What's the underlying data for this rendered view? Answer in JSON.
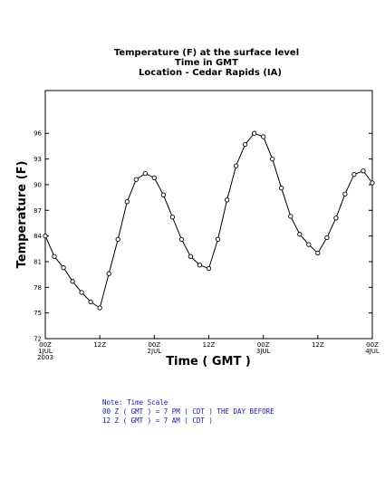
{
  "chart_data": {
    "type": "line",
    "title_lines": [
      "Temperature (F) at the surface level",
      "Time in GMT",
      "Location - Cedar Rapids (IA)"
    ],
    "xlabel": "Time ( GMT )",
    "ylabel": "Temperature (F)",
    "ylim": [
      72,
      101
    ],
    "yticks": [
      72,
      75,
      78,
      81,
      84,
      87,
      90,
      93,
      96
    ],
    "xlim": [
      0,
      72
    ],
    "xticks": [
      {
        "hour": 0,
        "lines": [
          "00Z",
          "1JUL",
          "2003"
        ]
      },
      {
        "hour": 12,
        "lines": [
          "12Z"
        ]
      },
      {
        "hour": 24,
        "lines": [
          "00Z",
          "2JUL"
        ]
      },
      {
        "hour": 36,
        "lines": [
          "12Z"
        ]
      },
      {
        "hour": 48,
        "lines": [
          "00Z",
          "3JUL"
        ]
      },
      {
        "hour": 60,
        "lines": [
          "12Z"
        ]
      },
      {
        "hour": 72,
        "lines": [
          "00Z",
          "4JUL"
        ]
      }
    ],
    "grid": false,
    "marker": "open-circle",
    "series": [
      {
        "x": [
          0,
          2,
          4,
          6,
          8,
          10,
          12,
          14,
          16,
          18,
          20,
          22,
          24,
          26,
          28,
          30,
          32,
          34,
          36,
          38,
          40,
          42,
          44,
          46,
          48,
          50,
          52,
          54,
          56,
          58,
          60,
          62,
          64,
          66,
          68,
          70,
          72
        ],
        "y": [
          84.0,
          81.6,
          80.3,
          78.7,
          77.4,
          76.3,
          75.6,
          79.6,
          83.6,
          88.0,
          90.6,
          91.3,
          90.8,
          88.8,
          86.2,
          83.6,
          81.6,
          80.6,
          80.2,
          83.6,
          88.2,
          92.2,
          94.7,
          96.0,
          95.6,
          93.0,
          89.6,
          86.3,
          84.2,
          83.0,
          82.0,
          83.8,
          86.1,
          88.9,
          91.2,
          91.6,
          90.2
        ]
      }
    ]
  },
  "note": {
    "lines": [
      "Note: Time Scale",
      "00 Z ( GMT ) = 7 PM ( CDT ) THE DAY BEFORE",
      "12 Z ( GMT ) = 7 AM ( CDT )"
    ]
  }
}
